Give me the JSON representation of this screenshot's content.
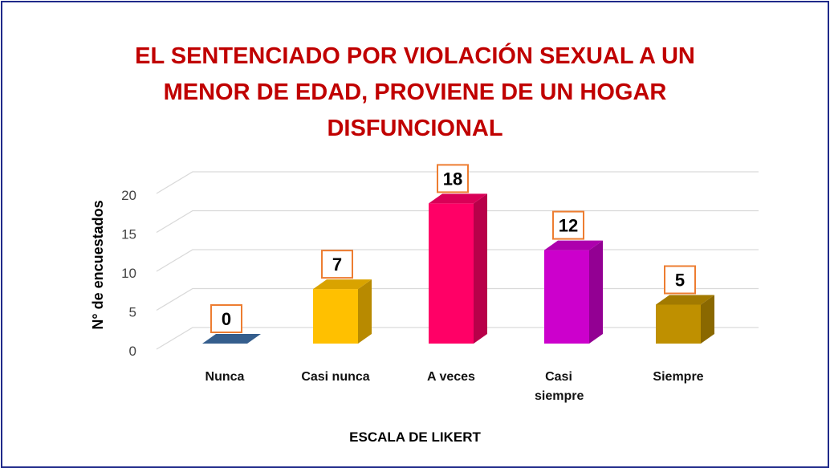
{
  "chart_data": {
    "type": "bar3d",
    "title": "EL SENTENCIADO POR VIOLACIÓN SEXUAL A UN MENOR DE EDAD, PROVIENE DE UN HOGAR DISFUNCIONAL",
    "x_label": "ESCALA DE LIKERT",
    "y_label": "N° de encuestados",
    "categories": [
      "Nunca",
      "Casi nunca",
      "A veces",
      "Casi siempre",
      "Siempre"
    ],
    "values": [
      0,
      7,
      18,
      12,
      5
    ],
    "colors": [
      "#3e6fa6",
      "#ffc000",
      "#ff0066",
      "#cc00cc",
      "#bf9000"
    ],
    "ylim": [
      0,
      20
    ],
    "yticks": [
      0,
      5,
      10,
      15,
      20
    ],
    "grid": true
  }
}
